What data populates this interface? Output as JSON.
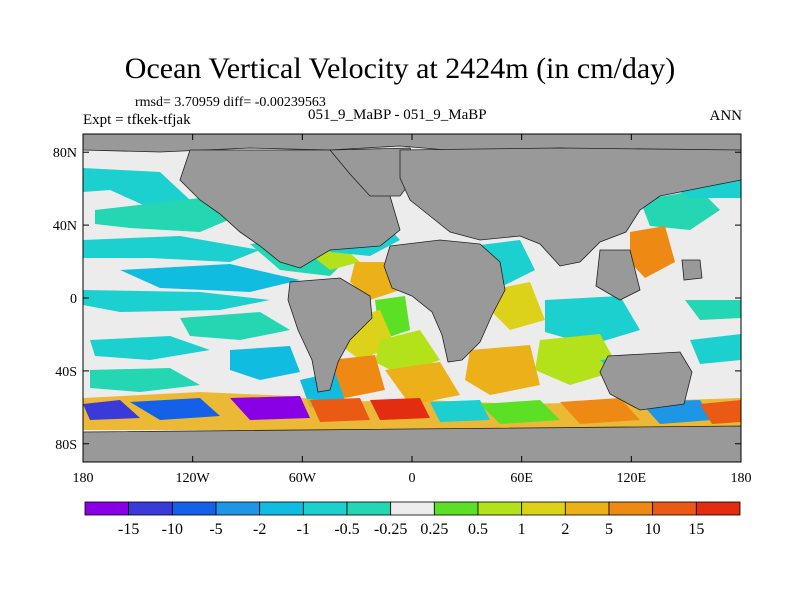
{
  "header": {
    "title": "Ocean Vertical Velocity at 2424m (in cm/day)",
    "stats": "rmsd= 3.70959 diff= -0.00239563",
    "experiment": "Expt = tfkek-tfjak",
    "comparison": "051_9_MaBP - 051_9_MaBP",
    "period": "ANN"
  },
  "map": {
    "lat_ticks": [
      "80N",
      "40N",
      "0",
      "40S",
      "80S"
    ],
    "lon_ticks": [
      "180",
      "120W",
      "60W",
      "0",
      "60E",
      "120E",
      "180"
    ],
    "land_color": "#999999",
    "missing_color": "#e8e8e8"
  },
  "chart_data": {
    "type": "heatmap",
    "title": "Ocean Vertical Velocity at 2424m (in cm/day)",
    "x_range": [
      -180,
      180
    ],
    "y_range": [
      -90,
      90
    ],
    "colorbar": {
      "levels": [
        "-15",
        "-10",
        "-5",
        "-2",
        "-1",
        "-0.5",
        "-0.25",
        "0.25",
        "0.5",
        "1",
        "2",
        "5",
        "10",
        "15"
      ],
      "colors": [
        "#8a00e6",
        "#3a3ad8",
        "#1460e8",
        "#1e96e6",
        "#10bde0",
        "#1cd0d0",
        "#24d6b2",
        "#ededed",
        "#5ce026",
        "#b4e21a",
        "#dcd21a",
        "#ecb018",
        "#ee8a14",
        "#ea5a14",
        "#e42c10"
      ]
    }
  }
}
